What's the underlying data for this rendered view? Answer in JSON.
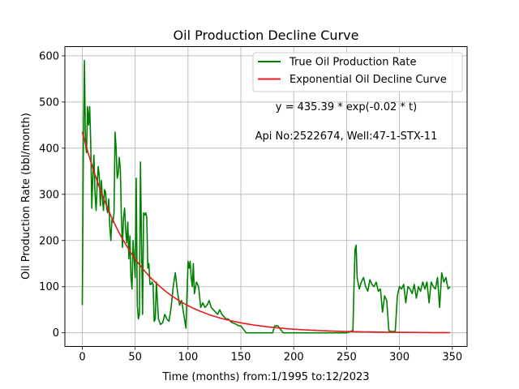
{
  "chart_data": {
    "type": "line",
    "title": "Oil Production Decline Curve",
    "xlabel": "Time (months) from:1/1995 to:12/2023",
    "ylabel": "Oil Production Rate (bbl/month)",
    "xlim": [
      -16.5,
      364
    ],
    "ylim": [
      -29.5,
      620
    ],
    "xticks": [
      0,
      50,
      100,
      150,
      200,
      250,
      300,
      350
    ],
    "yticks": [
      0,
      100,
      200,
      300,
      400,
      500,
      600
    ],
    "grid": true,
    "legend_position": "top-right",
    "annotations": [
      "y = 435.39 * exp(-0.02 * t)",
      "Api No:2522674, Well:47-1-STX-11"
    ],
    "series": [
      {
        "name": "True Oil Production Rate",
        "color": "#008000",
        "x": [
          0,
          1,
          2,
          3,
          4,
          5,
          6,
          7,
          8,
          9,
          10,
          11,
          12,
          13,
          14,
          15,
          16,
          17,
          18,
          19,
          20,
          21,
          22,
          23,
          24,
          25,
          26,
          27,
          28,
          29,
          30,
          31,
          32,
          33,
          34,
          35,
          36,
          37,
          38,
          39,
          40,
          41,
          42,
          43,
          44,
          45,
          46,
          47,
          48,
          49,
          50,
          51,
          52,
          53,
          54,
          55,
          56,
          57,
          58,
          59,
          60,
          61,
          62,
          63,
          64,
          65,
          66,
          67,
          68,
          69,
          70,
          72,
          74,
          76,
          78,
          80,
          82,
          84,
          86,
          88,
          90,
          92,
          94,
          96,
          98,
          100,
          101,
          102,
          103,
          104,
          105,
          106,
          108,
          110,
          112,
          114,
          116,
          118,
          120,
          122,
          124,
          126,
          128,
          130,
          132,
          134,
          136,
          138,
          140,
          142,
          144,
          146,
          148,
          150,
          155,
          160,
          170,
          180,
          182,
          185,
          190,
          200,
          210,
          220,
          230,
          240,
          250,
          256,
          257,
          258,
          259,
          260,
          262,
          264,
          266,
          268,
          270,
          272,
          274,
          276,
          278,
          280,
          282,
          284,
          286,
          288,
          290,
          292,
          294,
          296,
          298,
          300,
          302,
          304,
          306,
          308,
          310,
          312,
          314,
          316,
          318,
          320,
          322,
          324,
          326,
          328,
          330,
          332,
          334,
          336,
          338,
          340,
          342,
          344,
          346,
          348
        ],
        "y": [
          60,
          400,
          590,
          410,
          390,
          490,
          450,
          490,
          410,
          270,
          340,
          385,
          300,
          265,
          320,
          360,
          340,
          275,
          330,
          290,
          265,
          310,
          305,
          270,
          260,
          290,
          230,
          200,
          245,
          240,
          260,
          435,
          400,
          335,
          345,
          380,
          355,
          250,
          185,
          250,
          270,
          220,
          195,
          240,
          160,
          210,
          120,
          95,
          200,
          160,
          120,
          335,
          60,
          30,
          40,
          370,
          200,
          40,
          260,
          255,
          260,
          250,
          140,
          150,
          105,
          105,
          110,
          105,
          25,
          30,
          110,
          30,
          18,
          22,
          40,
          30,
          25,
          55,
          100,
          130,
          90,
          60,
          70,
          40,
          10,
          155,
          140,
          155,
          120,
          100,
          150,
          85,
          110,
          100,
          55,
          65,
          55,
          60,
          70,
          55,
          50,
          45,
          40,
          50,
          40,
          35,
          30,
          30,
          25,
          22,
          20,
          18,
          15,
          15,
          0,
          0,
          0,
          0,
          15,
          15,
          0,
          0,
          0,
          0,
          0,
          0,
          0,
          5,
          100,
          180,
          190,
          120,
          95,
          110,
          120,
          100,
          90,
          115,
          105,
          100,
          110,
          90,
          95,
          45,
          80,
          70,
          5,
          3,
          3,
          3,
          80,
          100,
          95,
          105,
          65,
          100,
          95,
          85,
          105,
          75,
          100,
          90,
          110,
          95,
          110,
          65,
          110,
          100,
          95,
          120,
          55,
          130,
          110,
          120,
          95,
          100
        ]
      },
      {
        "name": "Exponential Oil Decline Curve",
        "color": "#e41a1c",
        "a": 435.39,
        "b": 0.02,
        "x_start": 0,
        "x_end": 348
      }
    ]
  }
}
